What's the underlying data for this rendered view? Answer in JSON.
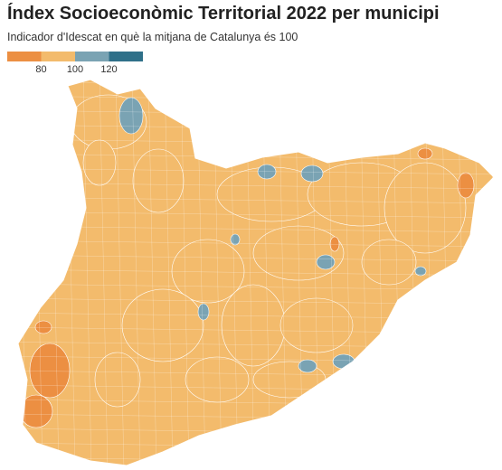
{
  "header": {
    "title": "Índex Socioeconòmic Territorial 2022 per municipi",
    "subtitle": "Indicador d'Idescat en què la mitjana de Catalunya és 100"
  },
  "legend": {
    "colors": [
      "#ec8f42",
      "#f3bb6c",
      "#7aa3b3",
      "#2f7089"
    ],
    "breaks": [
      80,
      100,
      120
    ]
  }
}
